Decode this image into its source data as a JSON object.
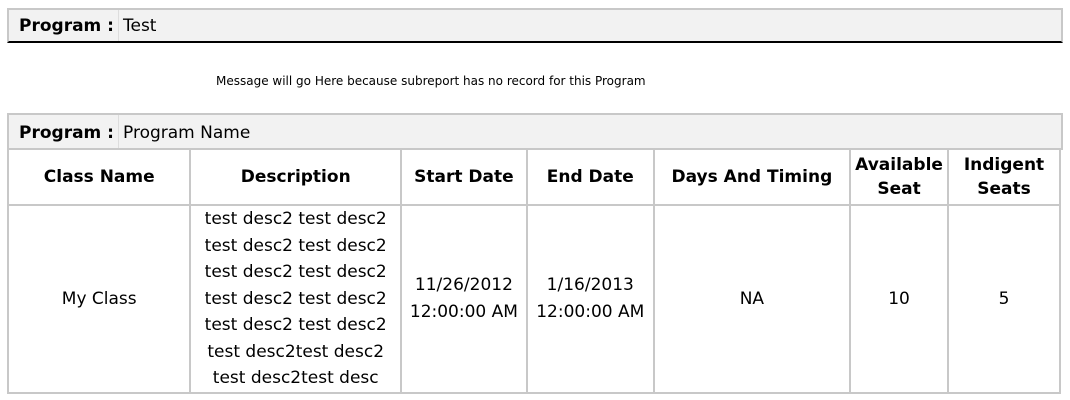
{
  "program_header": {
    "label": "Program :",
    "value": "Test"
  },
  "message": "Message will go Here because subreport has no record for this Program",
  "report": {
    "program_label": "Program :",
    "program_value": "Program Name",
    "columns": [
      "Class Name",
      "Description",
      "Start Date",
      "End Date",
      "Days And Timing",
      "Available Seat",
      "Indigent Seats"
    ],
    "rows": [
      {
        "class_name": "My Class",
        "description": [
          "test desc2 test desc2",
          "test desc2 test desc2",
          "test desc2 test desc2",
          "test desc2 test desc2",
          "test desc2 test desc2",
          "test desc2test desc2",
          "test desc2test desc"
        ],
        "start_date": [
          "11/26/2012",
          "12:00:00 AM"
        ],
        "end_date": [
          "1/16/2013",
          "12:00:00 AM"
        ],
        "days_and_timing": "NA",
        "available_seat": "10",
        "indigent_seats": "5"
      }
    ]
  }
}
